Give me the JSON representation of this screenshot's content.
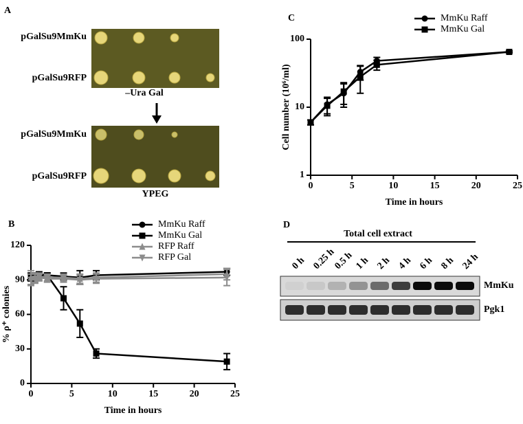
{
  "panel_a": {
    "panel_label": "A",
    "strains_top": [
      "pGalSu9MmKu",
      "pGalSu9RFP"
    ],
    "medium_top": "–Ura Gal",
    "strains_bottom": [
      "pGalSu9MmKu",
      "pGalSu9RFP"
    ],
    "medium_bottom": "YPEG"
  },
  "panel_d": {
    "panel_label": "D",
    "header": "Total cell extract",
    "lanes": [
      "0 h",
      "0.25 h",
      "0.5 h",
      "1 h",
      "2 h",
      "4 h",
      "6 h",
      "8 h",
      "24 h"
    ],
    "blots": [
      "MmKu",
      "Pgk1"
    ]
  },
  "chart_data": [
    {
      "type": "line",
      "panel_label": "B",
      "xlabel": "Time in hours",
      "ylabel": "% ρ⁺ colonies",
      "x": [
        0,
        0.5,
        1,
        2,
        4,
        6,
        8,
        24
      ],
      "xlim": [
        0,
        25
      ],
      "xticks": [
        0,
        5,
        10,
        15,
        20,
        25
      ],
      "ylim": [
        0,
        120
      ],
      "yticks": [
        0,
        30,
        60,
        90,
        120
      ],
      "log_y": false,
      "legend": "upper right",
      "series": [
        {
          "name": "MmKu Raff",
          "color": "#000000",
          "marker": "circle",
          "values": [
            93,
            93,
            95,
            94,
            93,
            92,
            94,
            97
          ],
          "errors": [
            3,
            3,
            2,
            2,
            3,
            6,
            4,
            3
          ]
        },
        {
          "name": "MmKu Gal",
          "color": "#000000",
          "marker": "square",
          "values": [
            92,
            93,
            94,
            94,
            74,
            52,
            26,
            19
          ],
          "errors": [
            3,
            3,
            2,
            2,
            10,
            12,
            4,
            7
          ]
        },
        {
          "name": "RFP Raff",
          "color": "#8c8c8c",
          "marker": "triangle-up",
          "values": [
            92,
            92,
            93,
            92,
            92,
            91,
            92,
            95
          ],
          "errors": [
            6,
            4,
            3,
            3,
            3,
            4,
            4,
            5
          ]
        },
        {
          "name": "RFP Gal",
          "color": "#8c8c8c",
          "marker": "triangle-down",
          "values": [
            90,
            91,
            92,
            91,
            91,
            90,
            91,
            92
          ],
          "errors": [
            5,
            4,
            3,
            3,
            3,
            4,
            4,
            7
          ]
        }
      ]
    },
    {
      "type": "line",
      "panel_label": "C",
      "xlabel": "Time in hours",
      "ylabel": "Cell number (10⁶/ml)",
      "x": [
        0,
        2,
        4,
        6,
        8,
        24
      ],
      "xlim": [
        0,
        25
      ],
      "xticks": [
        0,
        5,
        10,
        15,
        20,
        25
      ],
      "ylim": [
        1,
        100
      ],
      "yticks": [
        1,
        10,
        100
      ],
      "log_y": true,
      "legend": "upper right",
      "series": [
        {
          "name": "MmKu Raff",
          "color": "#000000",
          "marker": "circle",
          "values": [
            6,
            11,
            16,
            33,
            48,
            65
          ],
          "errors": [
            0.5,
            3,
            6,
            8,
            6,
            2
          ]
        },
        {
          "name": "MmKu Gal",
          "color": "#000000",
          "marker": "square",
          "values": [
            6,
            10.5,
            17,
            28,
            42,
            65
          ],
          "errors": [
            0.5,
            3,
            6,
            12,
            7,
            2
          ]
        }
      ]
    }
  ]
}
